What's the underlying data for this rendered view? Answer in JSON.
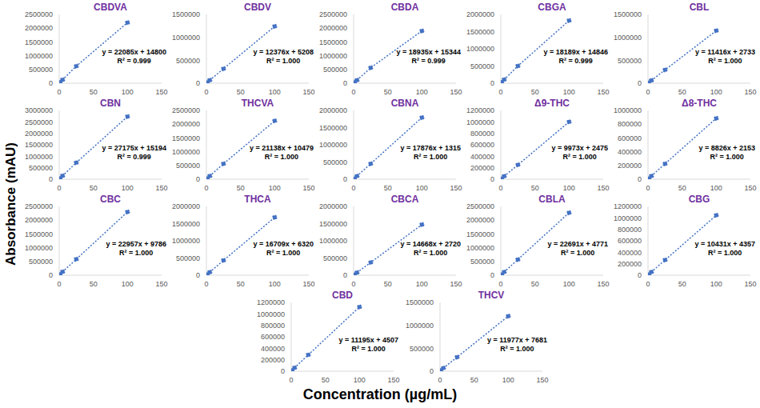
{
  "x_label": "Concentration (µg/mL)",
  "y_label": "Absorbance (mAU)",
  "chart_data": [
    {
      "type": "scatter",
      "title": "CBDVA",
      "x": [
        1,
        5,
        25,
        100
      ],
      "values": [
        37000,
        125000,
        620000,
        2200000
      ],
      "xlim": [
        0,
        150
      ],
      "xticks": [
        0,
        50,
        100,
        150
      ],
      "ylim": [
        0,
        2500000
      ],
      "yticks": [
        0,
        500000,
        1000000,
        1500000,
        2000000,
        2500000
      ],
      "annotations": [
        "y = 22085x + 14800",
        "R² = 0.999"
      ],
      "color": "#4472c4",
      "marker": "circle",
      "line_style": "dotted"
    },
    {
      "type": "scatter",
      "title": "CBDV",
      "x": [
        1,
        5,
        25,
        100
      ],
      "values": [
        17000,
        67000,
        315000,
        1240000
      ],
      "xlim": [
        0,
        150
      ],
      "xticks": [
        0,
        50,
        100,
        150
      ],
      "ylim": [
        0,
        1500000
      ],
      "yticks": [
        0,
        500000,
        1000000,
        1500000
      ],
      "annotations": [
        "y = 12376x + 5208",
        "R² = 1.000"
      ],
      "color": "#4472c4",
      "marker": "circle",
      "line_style": "dotted"
    },
    {
      "type": "scatter",
      "title": "CBDA",
      "x": [
        1,
        5,
        25,
        100
      ],
      "values": [
        34000,
        110000,
        560000,
        1900000
      ],
      "xlim": [
        0,
        150
      ],
      "xticks": [
        0,
        50,
        100,
        150
      ],
      "ylim": [
        0,
        2500000
      ],
      "yticks": [
        0,
        500000,
        1000000,
        1500000,
        2000000,
        2500000
      ],
      "annotations": [
        "y = 18935x + 15344",
        "R² = 0.999"
      ],
      "color": "#4472c4",
      "marker": "circle",
      "line_style": "dotted"
    },
    {
      "type": "scatter",
      "title": "CBGA",
      "x": [
        1,
        5,
        25,
        100
      ],
      "values": [
        33000,
        106000,
        500000,
        1820000
      ],
      "xlim": [
        0,
        150
      ],
      "xticks": [
        0,
        50,
        100,
        150
      ],
      "ylim": [
        0,
        2000000
      ],
      "yticks": [
        0,
        500000,
        1000000,
        1500000,
        2000000
      ],
      "annotations": [
        "y = 18189x + 14846",
        "R² = 0.999"
      ],
      "color": "#4472c4",
      "marker": "circle",
      "line_style": "dotted"
    },
    {
      "type": "scatter",
      "title": "CBL",
      "x": [
        1,
        5,
        25,
        100
      ],
      "values": [
        14000,
        60000,
        290000,
        1145000
      ],
      "xlim": [
        0,
        150
      ],
      "xticks": [
        0,
        50,
        100,
        150
      ],
      "ylim": [
        0,
        1500000
      ],
      "yticks": [
        0,
        500000,
        1000000,
        1500000
      ],
      "annotations": [
        "y = 11416x + 2733",
        "R² = 1.000"
      ],
      "color": "#4472c4",
      "marker": "circle",
      "line_style": "dotted"
    },
    {
      "type": "scatter",
      "title": "CBN",
      "x": [
        1,
        5,
        25,
        100
      ],
      "values": [
        42000,
        150000,
        720000,
        2730000
      ],
      "xlim": [
        0,
        150
      ],
      "xticks": [
        0,
        50,
        100,
        150
      ],
      "ylim": [
        0,
        3000000
      ],
      "yticks": [
        0,
        500000,
        1000000,
        1500000,
        2000000,
        2500000,
        3000000
      ],
      "annotations": [
        "y = 27175x + 15194",
        "R² = 0.999"
      ],
      "color": "#4472c4",
      "marker": "circle",
      "line_style": "dotted"
    },
    {
      "type": "scatter",
      "title": "THCVA",
      "x": [
        1,
        5,
        25,
        100
      ],
      "values": [
        31000,
        116000,
        560000,
        2120000
      ],
      "xlim": [
        0,
        150
      ],
      "xticks": [
        0,
        50,
        100,
        150
      ],
      "ylim": [
        0,
        2500000
      ],
      "yticks": [
        0,
        500000,
        1000000,
        1500000,
        2000000,
        2500000
      ],
      "annotations": [
        "y = 21138x + 10479",
        "R² = 1.000"
      ],
      "color": "#4472c4",
      "marker": "circle",
      "line_style": "dotted"
    },
    {
      "type": "scatter",
      "title": "CBNA",
      "x": [
        1,
        5,
        25,
        100
      ],
      "values": [
        19000,
        91000,
        450000,
        1790000
      ],
      "xlim": [
        0,
        150
      ],
      "xticks": [
        0,
        50,
        100,
        150
      ],
      "ylim": [
        0,
        2000000
      ],
      "yticks": [
        0,
        500000,
        1000000,
        1500000,
        2000000
      ],
      "annotations": [
        "y = 17876x + 1315",
        "R² = 1.000"
      ],
      "color": "#4472c4",
      "marker": "circle",
      "line_style": "dotted"
    },
    {
      "type": "scatter",
      "title": "Δ9-THC",
      "x": [
        1,
        5,
        25,
        100
      ],
      "values": [
        12000,
        52000,
        250000,
        1000000
      ],
      "xlim": [
        0,
        150
      ],
      "xticks": [
        0,
        50,
        100,
        150
      ],
      "ylim": [
        0,
        1200000
      ],
      "yticks": [
        0,
        200000,
        400000,
        600000,
        800000,
        1000000,
        1200000
      ],
      "annotations": [
        "y = 9973x + 2475",
        "R² = 1.000"
      ],
      "color": "#4472c4",
      "marker": "circle",
      "line_style": "dotted"
    },
    {
      "type": "scatter",
      "title": "Δ8-THC",
      "x": [
        1,
        5,
        25,
        100
      ],
      "values": [
        11000,
        46000,
        225000,
        885000
      ],
      "xlim": [
        0,
        150
      ],
      "xticks": [
        0,
        50,
        100,
        150
      ],
      "ylim": [
        0,
        1000000
      ],
      "yticks": [
        0,
        200000,
        400000,
        600000,
        800000,
        1000000
      ],
      "annotations": [
        "y = 8826x + 2153",
        "R² = 1.000"
      ],
      "color": "#4472c4",
      "marker": "circle",
      "line_style": "dotted"
    },
    {
      "type": "scatter",
      "title": "CBC",
      "x": [
        1,
        5,
        25,
        100
      ],
      "values": [
        33000,
        125000,
        580000,
        2300000
      ],
      "xlim": [
        0,
        150
      ],
      "xticks": [
        0,
        50,
        100,
        150
      ],
      "ylim": [
        0,
        2500000
      ],
      "yticks": [
        0,
        500000,
        1000000,
        1500000,
        2000000,
        2500000
      ],
      "annotations": [
        "y = 22957x + 9786",
        "R² = 1.000"
      ],
      "color": "#4472c4",
      "marker": "circle",
      "line_style": "dotted"
    },
    {
      "type": "scatter",
      "title": "THCA",
      "x": [
        1,
        5,
        25,
        100
      ],
      "values": [
        23000,
        90000,
        430000,
        1680000
      ],
      "xlim": [
        0,
        150
      ],
      "xticks": [
        0,
        50,
        100,
        150
      ],
      "ylim": [
        0,
        2000000
      ],
      "yticks": [
        0,
        500000,
        1000000,
        1500000,
        2000000
      ],
      "annotations": [
        "y = 16709x + 6320",
        "R² = 1.000"
      ],
      "color": "#4472c4",
      "marker": "circle",
      "line_style": "dotted"
    },
    {
      "type": "scatter",
      "title": "CBCA",
      "x": [
        1,
        5,
        25,
        100
      ],
      "values": [
        17000,
        76000,
        370000,
        1470000
      ],
      "xlim": [
        0,
        150
      ],
      "xticks": [
        0,
        50,
        100,
        150
      ],
      "ylim": [
        0,
        2000000
      ],
      "yticks": [
        0,
        500000,
        1000000,
        1500000,
        2000000
      ],
      "annotations": [
        "y = 14668x + 2720",
        "R² = 1.000"
      ],
      "color": "#4472c4",
      "marker": "circle",
      "line_style": "dotted"
    },
    {
      "type": "scatter",
      "title": "CBLA",
      "x": [
        1,
        5,
        25,
        100
      ],
      "values": [
        27000,
        118000,
        570000,
        2270000
      ],
      "xlim": [
        0,
        150
      ],
      "xticks": [
        0,
        50,
        100,
        150
      ],
      "ylim": [
        0,
        2500000
      ],
      "yticks": [
        0,
        500000,
        1000000,
        1500000,
        2000000,
        2500000
      ],
      "annotations": [
        "y = 22691x + 4771",
        "R² = 1.000"
      ],
      "color": "#4472c4",
      "marker": "circle",
      "line_style": "dotted"
    },
    {
      "type": "scatter",
      "title": "CBG",
      "x": [
        1,
        5,
        25,
        100
      ],
      "values": [
        15000,
        56000,
        265000,
        1045000
      ],
      "xlim": [
        0,
        150
      ],
      "xticks": [
        0,
        50,
        100,
        150
      ],
      "ylim": [
        0,
        1200000
      ],
      "yticks": [
        0,
        200000,
        400000,
        600000,
        800000,
        1000000,
        1200000
      ],
      "annotations": [
        "y = 10431x + 4357",
        "R² = 1.000"
      ],
      "color": "#4472c4",
      "marker": "circle",
      "line_style": "dotted"
    },
    {
      "type": "scatter",
      "title": "CBD",
      "x": [
        1,
        5,
        25,
        100
      ],
      "values": [
        16000,
        60000,
        285000,
        1120000
      ],
      "xlim": [
        0,
        150
      ],
      "xticks": [
        0,
        50,
        100,
        150
      ],
      "ylim": [
        0,
        1200000
      ],
      "yticks": [
        0,
        200000,
        400000,
        600000,
        800000,
        1000000,
        1200000
      ],
      "annotations": [
        "y = 11195x + 4507",
        "R² = 1.000"
      ],
      "color": "#4472c4",
      "marker": "circle",
      "line_style": "dotted"
    },
    {
      "type": "scatter",
      "title": "THCV",
      "x": [
        1,
        5,
        25,
        100
      ],
      "values": [
        20000,
        68000,
        307000,
        1200000
      ],
      "xlim": [
        0,
        150
      ],
      "xticks": [
        0,
        50,
        100,
        150
      ],
      "ylim": [
        0,
        1500000
      ],
      "yticks": [
        0,
        500000,
        1000000,
        1500000
      ],
      "annotations": [
        "y = 11977x + 7681",
        "R² = 1.000"
      ],
      "color": "#4472c4",
      "marker": "circle",
      "line_style": "dotted"
    }
  ]
}
